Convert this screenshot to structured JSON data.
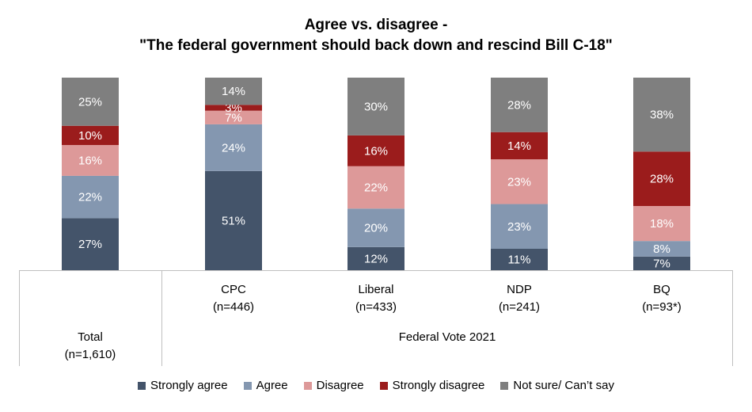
{
  "title_line1": "Agree vs. disagree -",
  "title_line2": "\"The federal government should back down and rescind Bill C-18\"",
  "chart_data": {
    "type": "bar",
    "stacked": true,
    "categories": [
      "Total",
      "CPC",
      "Liberal",
      "NDP",
      "BQ"
    ],
    "category_labels": [
      {
        "name": "Total",
        "n": "(n=1,610)"
      },
      {
        "name": "CPC",
        "n": "(n=446)"
      },
      {
        "name": "Liberal",
        "n": "(n=433)"
      },
      {
        "name": "NDP",
        "n": "(n=241)"
      },
      {
        "name": "BQ",
        "n": "(n=93*)"
      }
    ],
    "group_label": "Federal Vote 2021",
    "series": [
      {
        "name": "Strongly agree",
        "color": "#44546a",
        "values": [
          27,
          51,
          12,
          11,
          7
        ]
      },
      {
        "name": "Agree",
        "color": "#8497b0",
        "values": [
          22,
          24,
          20,
          23,
          8
        ]
      },
      {
        "name": "Disagree",
        "color": "#dd9999",
        "values": [
          16,
          7,
          22,
          23,
          18
        ]
      },
      {
        "name": "Strongly disagree",
        "color": "#9b1c1c",
        "values": [
          10,
          3,
          16,
          14,
          28
        ]
      },
      {
        "name": "Not sure/ Can’t say",
        "color": "#7f7f7f",
        "values": [
          25,
          14,
          30,
          28,
          38
        ]
      }
    ],
    "data_labels": [
      [
        "27%",
        "51%",
        "12%",
        "11%",
        "7%"
      ],
      [
        "22%",
        "24%",
        "20%",
        "23%",
        "8%"
      ],
      [
        "16%",
        "7%",
        "22%",
        "23%",
        "18%"
      ],
      [
        "10%",
        "3%",
        "16%",
        "14%",
        "28%"
      ],
      [
        "25%",
        "14%",
        "30%",
        "28%",
        "38%"
      ]
    ],
    "ylim": [
      0,
      100
    ],
    "legend_position": "bottom"
  }
}
